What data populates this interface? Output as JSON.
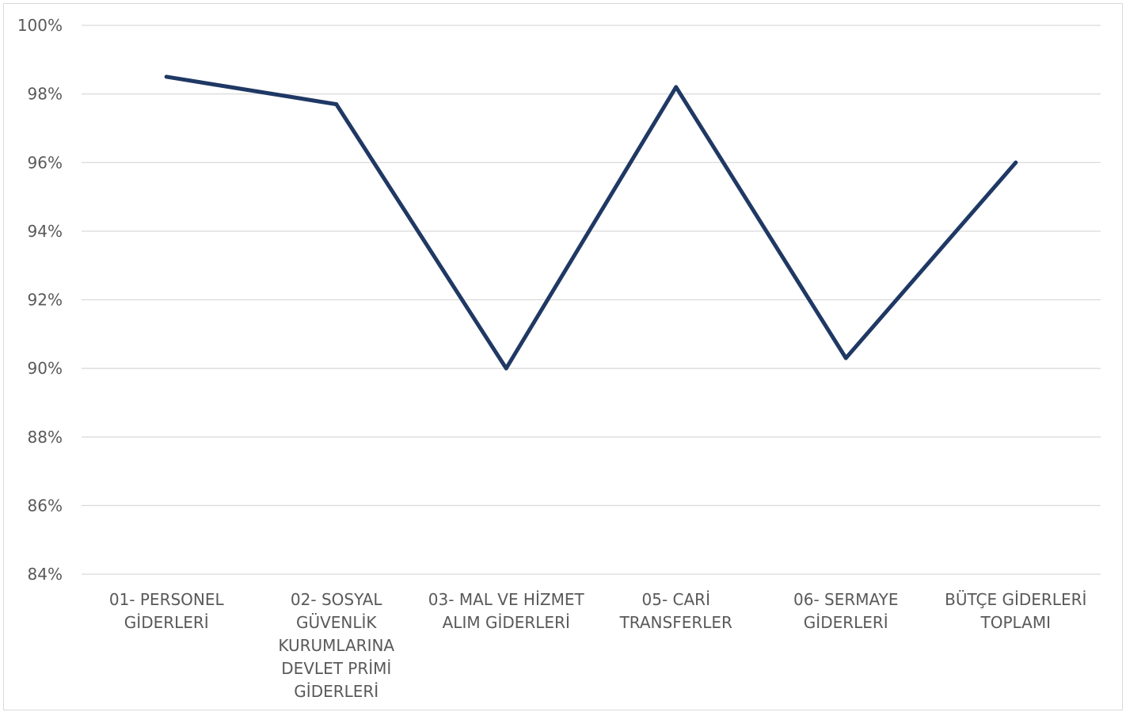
{
  "chart_data": {
    "type": "line",
    "categories": [
      [
        "01- PERSONEL",
        "GİDERLERİ"
      ],
      [
        "02- SOSYAL",
        "GÜVENLİK",
        "KURUMLARINA",
        "DEVLET PRİMİ",
        "GİDERLERİ"
      ],
      [
        "03- MAL VE HİZMET",
        "ALIM GİDERLERİ"
      ],
      [
        "05- CARİ",
        "TRANSFERLER"
      ],
      [
        "06- SERMAYE",
        "GİDERLERİ"
      ],
      [
        "BÜTÇE GİDERLERİ",
        "TOPLAMI"
      ]
    ],
    "series": [
      {
        "values": [
          98.5,
          97.7,
          90.0,
          98.2,
          90.3,
          96.0
        ]
      }
    ],
    "ylim": [
      84,
      100
    ],
    "yticks": [
      "84%",
      "86%",
      "88%",
      "90%",
      "92%",
      "94%",
      "96%",
      "98%",
      "100%"
    ],
    "ytick_values": [
      84,
      86,
      88,
      90,
      92,
      94,
      96,
      98,
      100
    ],
    "grid": true,
    "line_color": "#1f3864"
  }
}
